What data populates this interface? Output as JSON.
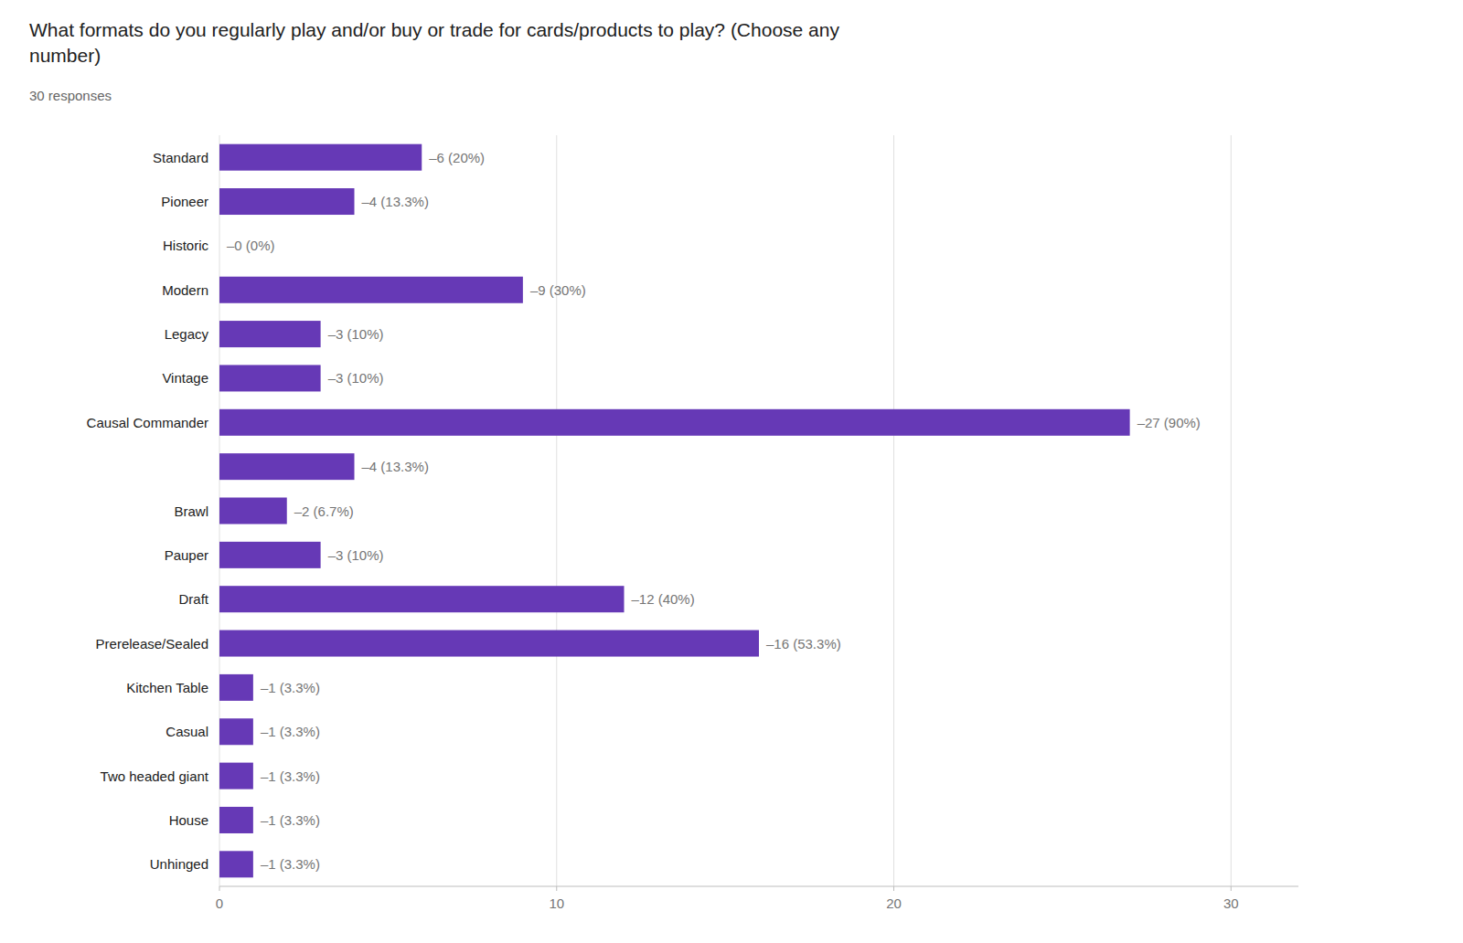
{
  "chart_data": {
    "type": "bar",
    "orientation": "horizontal",
    "title": "What formats do you regularly play and/or buy or trade for cards/products to play? (Choose any\nnumber)",
    "subtitle": "30 responses",
    "categories": [
      "Standard",
      "Pioneer",
      "Historic",
      "Modern",
      "Legacy",
      "Vintage",
      "Causal Commander",
      null,
      "Brawl",
      "Pauper",
      "Draft",
      "Prerelease/Sealed",
      "Kitchen Table",
      "Casual",
      "Two headed giant",
      "House",
      "Unhinged"
    ],
    "values": [
      6,
      4,
      0,
      9,
      3,
      3,
      27,
      4,
      2,
      3,
      12,
      16,
      1,
      1,
      1,
      1,
      1
    ],
    "value_labels": [
      "–6 (20%)",
      "–4 (13.3%)",
      "–0 (0%)",
      "–9 (30%)",
      "–3 (10%)",
      "–3 (10%)",
      "–27 (90%)",
      "–4 (13.3%)",
      "–2 (6.7%)",
      "–3 (10%)",
      "–12 (40%)",
      "–16 (53.3%)",
      "–1 (3.3%)",
      "–1 (3.3%)",
      "–1 (3.3%)",
      "–1 (3.3%)",
      "–1 (3.3%)"
    ],
    "data_labels": true,
    "color": "#6639b6",
    "xlim": [
      0,
      32
    ],
    "xticks": [
      0,
      10,
      20,
      30
    ],
    "grid": true
  }
}
